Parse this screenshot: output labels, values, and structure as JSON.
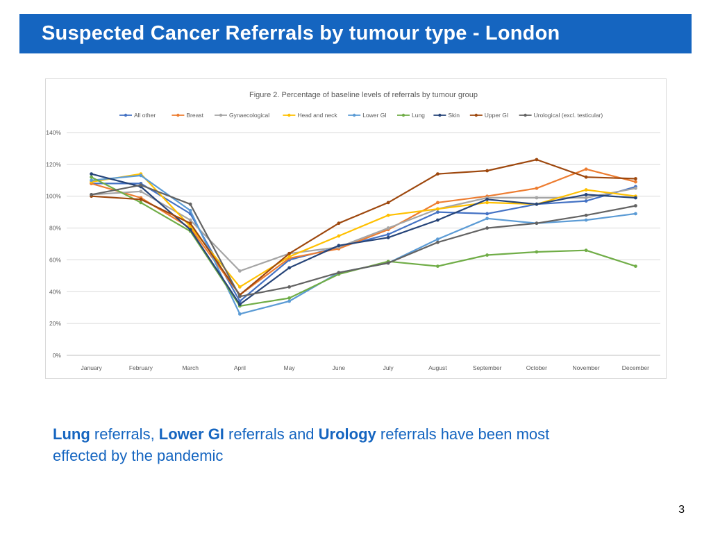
{
  "slide": {
    "title": "Suspected Cancer Referrals by tumour type - London",
    "page_number": "3",
    "caption": {
      "b1": "Lung",
      "t1": " referrals, ",
      "b2": "Lower GI",
      "t2": " referrals and ",
      "b3": "Urology",
      "t3": " referrals have been most effected by the pandemic"
    }
  },
  "chart_data": {
    "type": "line",
    "title": "Figure 2. Percentage of baseline levels of referrals by tumour group",
    "xlabel": "",
    "ylabel": "",
    "ylim": [
      0,
      140
    ],
    "yticks": [
      0,
      20,
      40,
      60,
      80,
      100,
      120,
      140
    ],
    "ytick_labels": [
      "0%",
      "20%",
      "40%",
      "60%",
      "80%",
      "100%",
      "120%",
      "140%"
    ],
    "grid": true,
    "legend_position": "top",
    "categories": [
      "January",
      "February",
      "March",
      "April",
      "May",
      "June",
      "July",
      "August",
      "September",
      "October",
      "November",
      "December"
    ],
    "series": [
      {
        "name": "All other",
        "color": "#4472C4",
        "values": [
          108,
          108,
          89,
          34,
          60,
          68,
          76,
          90,
          89,
          95,
          97,
          106
        ]
      },
      {
        "name": "Breast",
        "color": "#ED7D31",
        "values": [
          108,
          99,
          80,
          38,
          61,
          67,
          79,
          96,
          100,
          105,
          117,
          109
        ]
      },
      {
        "name": "Gynaecological",
        "color": "#A5A5A5",
        "values": [
          101,
          103,
          85,
          53,
          64,
          68,
          80,
          92,
          99,
          99,
          99,
          105
        ]
      },
      {
        "name": "Head and neck",
        "color": "#FFC000",
        "values": [
          109,
          114,
          81,
          43,
          62,
          75,
          88,
          92,
          96,
          95,
          104,
          100
        ]
      },
      {
        "name": "Lower GI",
        "color": "#5B9BD5",
        "values": [
          110,
          113,
          91,
          26,
          34,
          52,
          58,
          73,
          86,
          83,
          85,
          89
        ]
      },
      {
        "name": "Lung",
        "color": "#70AD47",
        "values": [
          112,
          96,
          78,
          31,
          36,
          51,
          59,
          56,
          63,
          65,
          66,
          56
        ]
      },
      {
        "name": "Skin",
        "color": "#264478",
        "values": [
          114,
          106,
          79,
          32,
          55,
          69,
          74,
          85,
          98,
          95,
          101,
          99
        ]
      },
      {
        "name": "Upper GI",
        "color": "#9E480E",
        "values": [
          100,
          98,
          83,
          38,
          64,
          83,
          96,
          114,
          116,
          123,
          112,
          111
        ]
      },
      {
        "name": "Urological (excl. testicular)",
        "color": "#636363",
        "values": [
          101,
          107,
          95,
          37,
          43,
          52,
          58,
          71,
          80,
          83,
          88,
          94
        ]
      }
    ]
  }
}
